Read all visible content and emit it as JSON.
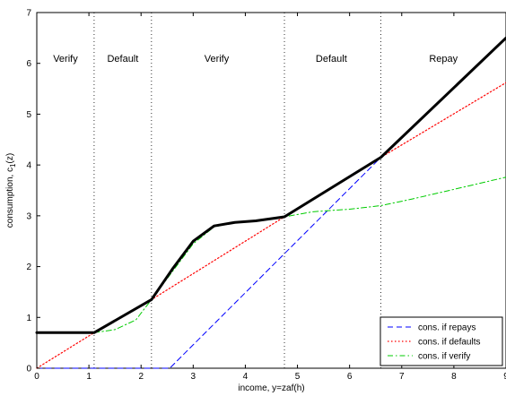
{
  "chart_data": {
    "type": "line",
    "xlabel": "income, y=zaf(h)",
    "ylabel": "consumption, c",
    "ylabel_sub": "1",
    "ylabel_tail": "(z)",
    "xlim": [
      0,
      9
    ],
    "ylim": [
      0,
      7
    ],
    "xticks": [
      0,
      1,
      2,
      3,
      4,
      5,
      6,
      7,
      8,
      9
    ],
    "yticks": [
      0,
      1,
      2,
      3,
      4,
      5,
      6,
      7
    ],
    "regions": [
      {
        "label": "Verify",
        "x_center": 0.55
      },
      {
        "label": "Default",
        "x_center": 1.65
      },
      {
        "label": "Verify",
        "x_center": 3.45
      },
      {
        "label": "Default",
        "x_center": 5.65
      },
      {
        "label": "Repay",
        "x_center": 7.8
      }
    ],
    "region_label_y": 6.1,
    "boundaries": [
      1.1,
      2.2,
      4.75,
      6.6
    ],
    "legend_position": "bottom-right",
    "series": [
      {
        "name": "cons. if repays",
        "color": "#0000ff",
        "style": "dashed",
        "x": [
          0,
          2.55,
          6.6,
          9
        ],
        "y": [
          0,
          0,
          4.15,
          6.5
        ]
      },
      {
        "name": "cons. if defaults",
        "color": "#ff0000",
        "style": "dotted",
        "x": [
          0,
          1.1,
          2.2,
          4.75,
          6.6,
          9
        ],
        "y": [
          0,
          0.7,
          1.35,
          2.98,
          4.15,
          5.62
        ]
      },
      {
        "name": "cons. if verify",
        "color": "#00cc00",
        "style": "dashdot",
        "x": [
          1.1,
          1.5,
          1.9,
          2.2,
          2.6,
          3.0,
          3.4,
          3.8,
          4.2,
          4.75,
          5.3,
          6.0,
          6.6,
          7.2,
          8.0,
          9.0
        ],
        "y": [
          0.7,
          0.76,
          0.95,
          1.35,
          1.9,
          2.45,
          2.78,
          2.87,
          2.9,
          2.98,
          3.08,
          3.13,
          3.2,
          3.33,
          3.52,
          3.76
        ]
      },
      {
        "name": "",
        "color": "#000000",
        "style": "solid-thick",
        "x": [
          0,
          1.1,
          2.2,
          2.6,
          3.0,
          3.4,
          3.8,
          4.2,
          4.75,
          6.6,
          9
        ],
        "y": [
          0.7,
          0.7,
          1.35,
          1.95,
          2.5,
          2.8,
          2.87,
          2.9,
          2.98,
          4.15,
          6.5
        ]
      }
    ]
  }
}
